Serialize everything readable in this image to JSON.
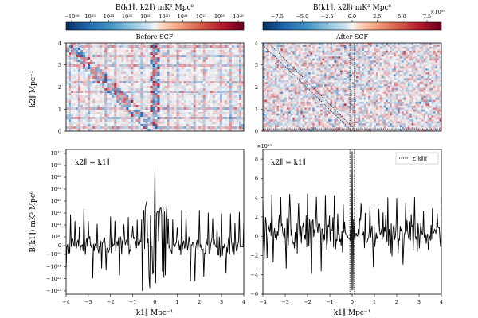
{
  "figure": {
    "colorbar_left_label": "B(k1∥, k2∥) mK³ Mpc⁶",
    "colorbar_right_label": "B(k1∥, k2∥) mK³ Mpc⁶",
    "colorbar_left_ticks": [
      "−10²⁶",
      "10²⁵",
      "10²³",
      "10²¹",
      "10²⁰",
      "10²⁰",
      "10²¹",
      "10²³",
      "10²⁵",
      "10²⁶"
    ],
    "colorbar_right_ticks": [
      "−7.5",
      "−5.0",
      "−2.5",
      "0.0",
      "2.5",
      "5.0",
      "7.5"
    ],
    "colorbar_right_exponent": "×10¹⁹",
    "panel_top_left_title": "Before SCF",
    "panel_top_right_title": "After SCF",
    "y_label_top": "k2∥ Mpc⁻¹",
    "y_label_bottom": "B(k1∥) mK³ Mpc⁶",
    "x_label_left": "k1∥ Mpc⁻¹",
    "x_label_right": "k1∥ Mpc⁻¹",
    "annotation_left": "k2∥ = k1∥",
    "annotation_right": "k2∥ = k1∥",
    "legend_label": "±|k∥|f",
    "right_exponent": "×10¹⁹"
  },
  "chart_data": [
    {
      "type": "heatmap",
      "title": "Before SCF",
      "xlabel": "",
      "ylabel": "k2∥ Mpc⁻¹",
      "xlim": [
        -4,
        4
      ],
      "ylim": [
        0,
        4
      ],
      "y_ticks": [
        "0",
        "1",
        "2",
        "3",
        "4"
      ],
      "colormap": "RdBu_r (symlog)",
      "features": [
        "grid of spikes at multiples of ~0.2 Mpc⁻¹",
        "enhanced diagonal k2 = -k1 band",
        "vertical spike at k1 = 0"
      ]
    },
    {
      "type": "heatmap",
      "title": "After SCF",
      "xlabel": "",
      "ylabel": "",
      "xlim": [
        -4,
        4
      ],
      "ylim": [
        0,
        4
      ],
      "y_ticks": [
        "0",
        "1",
        "2",
        "3",
        "4"
      ],
      "colormap": "RdBu_r (linear)",
      "features": [
        "noise-like field",
        "dotted diagonal lines along k2 = -k1",
        "dotted lines at ±|k∥|f"
      ]
    },
    {
      "type": "line",
      "title": "",
      "annotation": "k2∥ = k1∥",
      "xlabel": "k1∥ Mpc⁻¹",
      "ylabel": "B(k1∥) mK³ Mpc⁶",
      "xlim": [
        -4,
        4
      ],
      "x_ticks": [
        "−4",
        "−3",
        "−2",
        "−1",
        "0",
        "1",
        "2",
        "3",
        "4"
      ],
      "y_scale": "symlog",
      "y_ticks": [
        "10²⁷",
        "10²⁶",
        "10²⁵",
        "10²⁴",
        "10²³",
        "10²²",
        "10²¹",
        "10²⁰",
        "0",
        "−10²⁰",
        "−10²¹",
        "−10²²",
        "−10²³"
      ],
      "peak": {
        "x": 0.0,
        "y": "1e26"
      },
      "spike_spacing": 0.2,
      "baseline_band": [
        "-1e20",
        "1e20"
      ]
    },
    {
      "type": "line",
      "title": "",
      "annotation": "k2∥ = k1∥",
      "xlabel": "k1∥ Mpc⁻¹",
      "ylabel": "",
      "xlim": [
        -4,
        4
      ],
      "ylim": [
        -6,
        9
      ],
      "y_unit_multiplier": "1e19",
      "x_ticks": [
        "−4",
        "−3",
        "−2",
        "−1",
        "0",
        "1",
        "2",
        "3",
        "4"
      ],
      "y_ticks": [
        "8",
        "6",
        "4",
        "2",
        "0",
        "−2",
        "−4",
        "−6"
      ],
      "legend": "±|k∥|f",
      "vlines": [
        -0.1,
        0.1
      ],
      "peak": {
        "x": 0.0,
        "y": 8.8
      },
      "typical_range": [
        -2,
        4
      ]
    }
  ]
}
